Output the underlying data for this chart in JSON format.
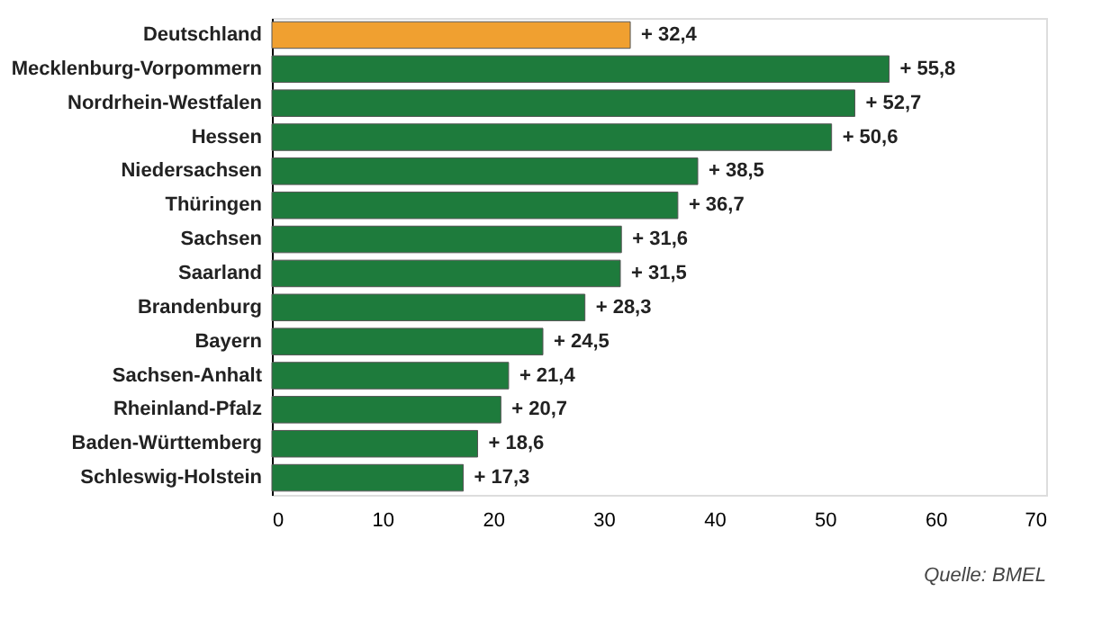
{
  "chart_data": {
    "type": "bar",
    "orientation": "horizontal",
    "categories": [
      "Deutschland",
      "Mecklenburg-Vorpommern",
      "Nordrhein-Westfalen",
      "Hessen",
      "Niedersachsen",
      "Thüringen",
      "Sachsen",
      "Saarland",
      "Brandenburg",
      "Bayern",
      "Sachsen-Anhalt",
      "Rheinland-Pfalz",
      "Baden-Württemberg",
      "Schleswig-Holstein"
    ],
    "values": [
      32.4,
      55.8,
      52.7,
      50.6,
      38.5,
      36.7,
      31.6,
      31.5,
      28.3,
      24.5,
      21.4,
      20.7,
      18.6,
      17.3
    ],
    "value_labels": [
      "+ 32,4",
      "+ 55,8",
      "+ 52,7",
      "+ 50,6",
      "+ 38,5",
      "+ 36,7",
      "+ 31,6",
      "+ 31,5",
      "+ 28,3",
      "+ 24,5",
      "+ 21,4",
      "+ 20,7",
      "+ 18,6",
      "+ 17,3"
    ],
    "colors": [
      "#f0a030",
      "#1e7b3c",
      "#1e7b3c",
      "#1e7b3c",
      "#1e7b3c",
      "#1e7b3c",
      "#1e7b3c",
      "#1e7b3c",
      "#1e7b3c",
      "#1e7b3c",
      "#1e7b3c",
      "#1e7b3c",
      "#1e7b3c",
      "#1e7b3c"
    ],
    "xlim": [
      0,
      70
    ],
    "xticks": [
      0,
      10,
      20,
      30,
      40,
      50,
      60,
      70
    ],
    "grid": false,
    "annotations": [
      "Quelle: BMEL"
    ]
  }
}
